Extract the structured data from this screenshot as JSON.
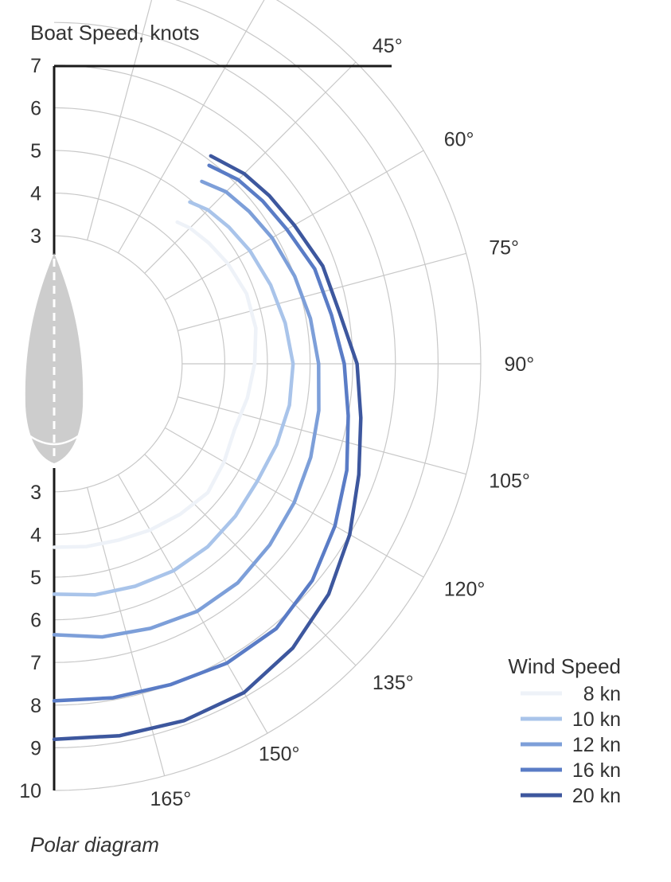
{
  "chart_data": {
    "type": "line",
    "polar": true,
    "title": "Boat Speed, knots",
    "caption": "Polar diagram",
    "legend_title": "Wind Speed",
    "legend_position": "bottom-right",
    "radial_axis": {
      "upper_ticks": [
        "7",
        "6",
        "5",
        "4",
        "3"
      ],
      "lower_ticks": [
        "3",
        "4",
        "5",
        "6",
        "7",
        "8",
        "9",
        "10"
      ],
      "range": [
        0,
        10
      ]
    },
    "angle_labels": [
      {
        "angle": 45,
        "label": "45°"
      },
      {
        "angle": 60,
        "label": "60°"
      },
      {
        "angle": 75,
        "label": "75°"
      },
      {
        "angle": 90,
        "label": "90°"
      },
      {
        "angle": 105,
        "label": "105°"
      },
      {
        "angle": 120,
        "label": "120°"
      },
      {
        "angle": 135,
        "label": "135°"
      },
      {
        "angle": 150,
        "label": "150°"
      },
      {
        "angle": 165,
        "label": "165°"
      }
    ],
    "series": [
      {
        "name": "8 kn",
        "color": "#eef2f8",
        "points": [
          [
            41,
            4.4
          ],
          [
            45,
            4.5
          ],
          [
            52,
            4.6
          ],
          [
            60,
            4.7
          ],
          [
            70,
            4.8
          ],
          [
            80,
            4.8
          ],
          [
            90,
            4.7
          ],
          [
            100,
            4.6
          ],
          [
            110,
            4.5
          ],
          [
            120,
            4.6
          ],
          [
            130,
            4.7
          ],
          [
            140,
            4.6
          ],
          [
            150,
            4.5
          ],
          [
            160,
            4.4
          ],
          [
            170,
            4.35
          ],
          [
            180,
            4.3
          ]
        ]
      },
      {
        "name": "10 kn",
        "color": "#a9c4ea",
        "points": [
          [
            40,
            4.95
          ],
          [
            45,
            5.1
          ],
          [
            52,
            5.2
          ],
          [
            60,
            5.3
          ],
          [
            70,
            5.4
          ],
          [
            80,
            5.5
          ],
          [
            90,
            5.6
          ],
          [
            100,
            5.6
          ],
          [
            110,
            5.55
          ],
          [
            120,
            5.5
          ],
          [
            130,
            5.55
          ],
          [
            140,
            5.6
          ],
          [
            150,
            5.6
          ],
          [
            160,
            5.55
          ],
          [
            170,
            5.5
          ],
          [
            180,
            5.4
          ]
        ]
      },
      {
        "name": "12 kn",
        "color": "#7d9fd9",
        "points": [
          [
            39,
            5.5
          ],
          [
            45,
            5.7
          ],
          [
            52,
            5.8
          ],
          [
            60,
            5.9
          ],
          [
            70,
            6.0
          ],
          [
            80,
            6.1
          ],
          [
            90,
            6.2
          ],
          [
            100,
            6.3
          ],
          [
            110,
            6.4
          ],
          [
            120,
            6.5
          ],
          [
            130,
            6.6
          ],
          [
            140,
            6.7
          ],
          [
            150,
            6.7
          ],
          [
            160,
            6.6
          ],
          [
            170,
            6.5
          ],
          [
            180,
            6.35
          ]
        ]
      },
      {
        "name": "16 kn",
        "color": "#5a7cc6",
        "points": [
          [
            38,
            5.9
          ],
          [
            45,
            6.1
          ],
          [
            52,
            6.2
          ],
          [
            60,
            6.3
          ],
          [
            70,
            6.5
          ],
          [
            80,
            6.6
          ],
          [
            90,
            6.8
          ],
          [
            100,
            7.0
          ],
          [
            110,
            7.3
          ],
          [
            120,
            7.6
          ],
          [
            130,
            7.9
          ],
          [
            140,
            8.1
          ],
          [
            150,
            8.1
          ],
          [
            160,
            8.0
          ],
          [
            170,
            7.95
          ],
          [
            180,
            7.9
          ]
        ]
      },
      {
        "name": "20 kn",
        "color": "#3d579e",
        "points": [
          [
            37,
            6.1
          ],
          [
            45,
            6.3
          ],
          [
            52,
            6.4
          ],
          [
            60,
            6.5
          ],
          [
            70,
            6.7
          ],
          [
            80,
            6.8
          ],
          [
            90,
            7.1
          ],
          [
            100,
            7.3
          ],
          [
            110,
            7.6
          ],
          [
            120,
            8.0
          ],
          [
            130,
            8.4
          ],
          [
            140,
            8.7
          ],
          [
            150,
            8.9
          ],
          [
            160,
            8.9
          ],
          [
            170,
            8.85
          ],
          [
            180,
            8.8
          ]
        ]
      }
    ]
  }
}
